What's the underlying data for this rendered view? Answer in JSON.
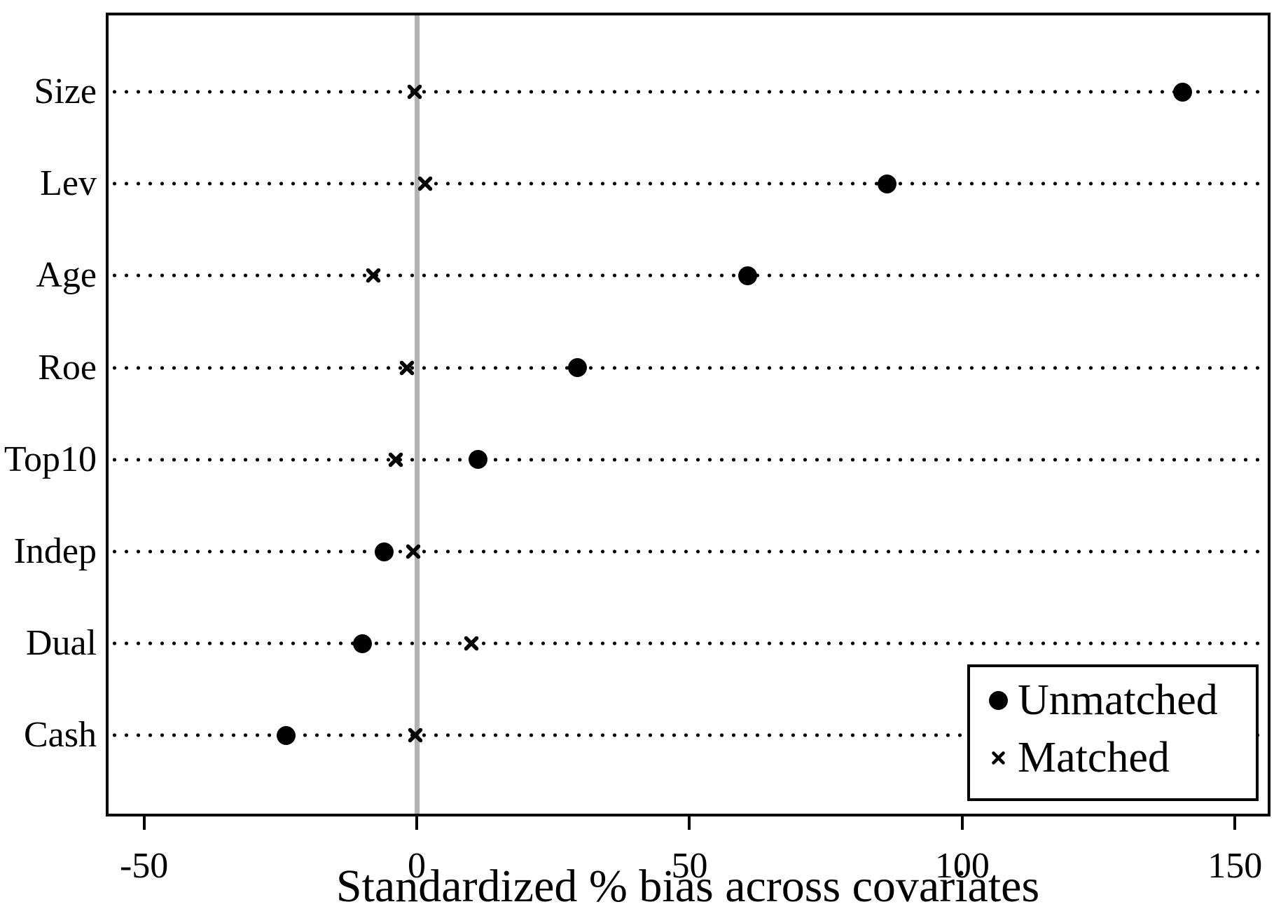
{
  "chart_data": {
    "type": "scatter",
    "subtype": "horizontal-dot-plot",
    "title": "",
    "xlabel": "Standardized % bias across covariates",
    "ylabel": "",
    "categories": [
      "Size",
      "Lev",
      "Age",
      "Roe",
      "Top10",
      "Indep",
      "Dual",
      "Cash"
    ],
    "series": [
      {
        "name": "Unmatched",
        "marker": "filled-circle",
        "values": [
          140.4,
          86.2,
          60.6,
          29.4,
          11.2,
          -6.0,
          -10.0,
          -23.9
        ]
      },
      {
        "name": "Matched",
        "marker": "x-cross",
        "values": [
          -0.4,
          1.5,
          -8.0,
          -1.8,
          -3.9,
          -0.7,
          10.0,
          -0.3
        ]
      }
    ],
    "x_ticks": [
      -50,
      0,
      50,
      100,
      150
    ],
    "x_tick_labels": [
      "-50",
      "0",
      "50",
      "100",
      "150"
    ],
    "xlim": [
      -56.5,
      156
    ],
    "reference_line_x": 0,
    "grid": "dotted-horizontal-rows",
    "legend_position": "bottom-right"
  },
  "legend": {
    "items": [
      {
        "label": "Unmatched",
        "marker": "filled-circle"
      },
      {
        "label": "Matched",
        "marker": "x-cross"
      }
    ]
  },
  "colors": {
    "marker": "#000000",
    "text": "#000000",
    "reference_line": "#b3b3b3",
    "border": "#000000",
    "background": "#ffffff"
  }
}
